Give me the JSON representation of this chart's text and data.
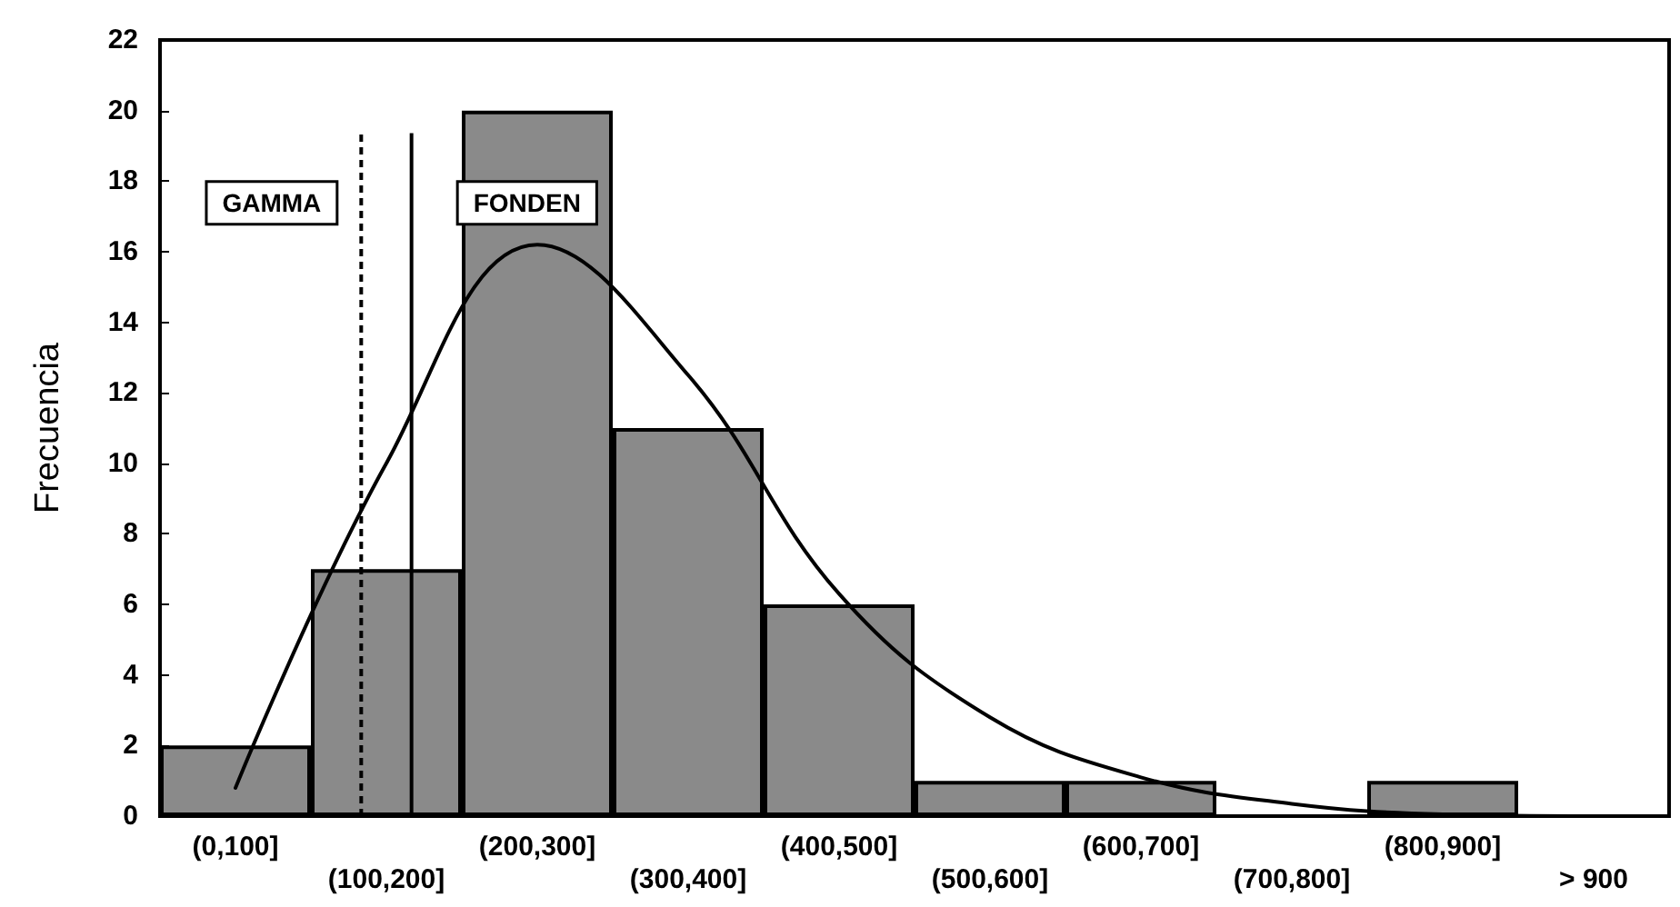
{
  "chart_data": {
    "type": "bar",
    "ylabel": "Frecuencia",
    "categories": [
      "(0,100]",
      "(100,200]",
      "(200,300]",
      "(300,400]",
      "(400,500]",
      "(500,600]",
      "(600,700]",
      "(700,800]",
      "(800,900]",
      "> 900"
    ],
    "values": [
      2,
      7,
      20,
      11,
      6,
      1,
      1,
      0,
      1,
      0
    ],
    "color": "#8a8a8a",
    "ylim": [
      0,
      22
    ],
    "yticks": [
      0,
      2,
      4,
      6,
      8,
      10,
      12,
      14,
      16,
      18,
      20,
      22
    ],
    "series": [
      {
        "type": "line",
        "color": "#000000",
        "values": [
          0.8,
          10,
          16.2,
          12.5,
          6.3,
          2.8,
          1.1,
          0.35,
          0.05,
          0
        ]
      }
    ],
    "ref_lines": [
      {
        "axis": "x",
        "value": "(100,200]",
        "label": "GAMMA",
        "line_style": "dashed"
      },
      {
        "axis": "x",
        "value": "(100,200]",
        "label": "FONDEN",
        "line_style": "solid"
      }
    ],
    "grid": false,
    "marker": "none"
  }
}
